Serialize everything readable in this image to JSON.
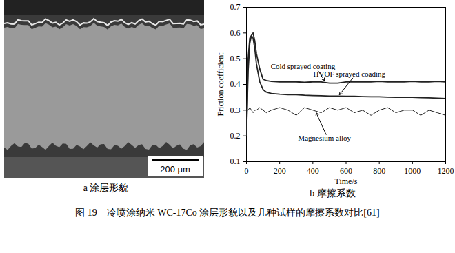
{
  "chart_data": {
    "type": "line",
    "subtitle": "b 摩擦系数",
    "caption": "图 19　冷喷涂纳米 WC-17Co 涂层形貌以及几种试样的摩擦系数对比[61]",
    "x_label": "Time/s",
    "y_label": "Friction coefficient",
    "x": [
      0,
      10,
      20,
      30,
      40,
      50,
      60,
      80,
      100,
      120,
      150,
      200,
      250,
      300,
      350,
      400,
      450,
      500,
      550,
      600,
      650,
      700,
      750,
      800,
      850,
      900,
      950,
      1000,
      1050,
      1100,
      1150,
      1200
    ],
    "series": [
      {
        "name": "Cold sprayed coating",
        "color": "#222222",
        "values": [
          0.2,
          0.45,
          0.56,
          0.59,
          0.6,
          0.57,
          0.52,
          0.46,
          0.42,
          0.415,
          0.412,
          0.41,
          0.41,
          0.41,
          0.408,
          0.41,
          0.41,
          0.405,
          0.405,
          0.41,
          0.41,
          0.41,
          0.41,
          0.412,
          0.41,
          0.41,
          0.41,
          0.412,
          0.41,
          0.41,
          0.412,
          0.41
        ]
      },
      {
        "name": "HVOF sprayed coading",
        "color": "#222222",
        "values": [
          0.2,
          0.5,
          0.58,
          0.59,
          0.58,
          0.54,
          0.48,
          0.41,
          0.38,
          0.37,
          0.365,
          0.362,
          0.36,
          0.36,
          0.358,
          0.357,
          0.356,
          0.355,
          0.355,
          0.354,
          0.354,
          0.353,
          0.352,
          0.352,
          0.351,
          0.35,
          0.35,
          0.35,
          0.349,
          0.348,
          0.347,
          0.345
        ]
      },
      {
        "name": "Magnesium alloy",
        "color": "#222222",
        "values": [
          0.3,
          0.3,
          0.31,
          0.3,
          0.29,
          0.3,
          0.3,
          0.31,
          0.3,
          0.29,
          0.3,
          0.31,
          0.3,
          0.28,
          0.31,
          0.3,
          0.29,
          0.31,
          0.3,
          0.31,
          0.29,
          0.3,
          0.28,
          0.3,
          0.31,
          0.29,
          0.3,
          0.3,
          0.28,
          0.3,
          0.29,
          0.28
        ]
      }
    ],
    "xlim": [
      0,
      1200
    ],
    "xticks": [
      0,
      200,
      400,
      600,
      800,
      1000,
      1200
    ],
    "ylim": [
      0.1,
      0.7
    ],
    "yticks": [
      0.1,
      0.2,
      0.3,
      0.4,
      0.5,
      0.6,
      0.7
    ]
  },
  "image_panel": {
    "label": "a 涂层形貌",
    "scale_bar": "200 μm"
  }
}
